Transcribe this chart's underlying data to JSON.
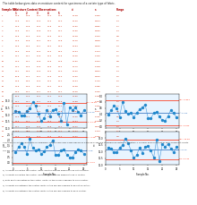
{
  "title_text": "The table below gives data on moisture content for specimens of a certain type of fabric.",
  "table_headers": [
    "Sample No.",
    "1",
    "2",
    "3",
    "4",
    "5",
    "x̄",
    "s",
    "Range"
  ],
  "table_data": [
    [
      1,
      11.9,
      12.8,
      12.4,
      12.4,
      11.9,
      12.28,
      0.39,
      0.9
    ],
    [
      2,
      11.5,
      12.4,
      12.9,
      12.2,
      12.0,
      12.2,
      0.524,
      1.4
    ],
    [
      3,
      11.0,
      11.8,
      12.6,
      11.5,
      12.7,
      11.92,
      0.682,
      1.7
    ],
    [
      4,
      11.5,
      11.7,
      12.8,
      11.4,
      12.4,
      11.96,
      0.596,
      1.4
    ],
    [
      5,
      12.5,
      12.0,
      11.9,
      12.3,
      12.7,
      12.28,
      0.316,
      0.8
    ],
    [
      6,
      11.6,
      12.8,
      12.4,
      13.7,
      11.8,
      12.46,
      0.808,
      2.1
    ],
    [
      7,
      12.9,
      13.3,
      12.1,
      13.4,
      13.0,
      12.94,
      0.506,
      1.3
    ],
    [
      8,
      12.3,
      12.8,
      12.6,
      12.2,
      13.3,
      12.64,
      0.413,
      1.1
    ],
    [
      9,
      12.1,
      12.7,
      11.8,
      12.2,
      11.5,
      12.06,
      0.445,
      1.2
    ],
    [
      10,
      11.0,
      11.7,
      11.8,
      11.6,
      11.5,
      11.52,
      0.312,
      0.8
    ],
    [
      11,
      11.4,
      11.3,
      11.5,
      12.3,
      12.1,
      11.72,
      0.448,
      1.0
    ],
    [
      12,
      12.1,
      13.3,
      11.9,
      12.2,
      12.0,
      12.3,
      0.554,
      1.4
    ],
    [
      13,
      10.8,
      12.4,
      12.4,
      11.9,
      12.0,
      11.9,
      0.626,
      1.6
    ],
    [
      14,
      12.5,
      13.3,
      11.3,
      12.2,
      12.4,
      12.34,
      0.716,
      2.0
    ],
    [
      15,
      11.9,
      12.6,
      12.6,
      12.4,
      12.4,
      12.38,
      0.285,
      0.7
    ],
    [
      16,
      12.0,
      12.1,
      11.7,
      12.1,
      12.4,
      12.06,
      0.26,
      0.7
    ],
    [
      17,
      10.9,
      11.6,
      12.0,
      11.4,
      11.9,
      11.56,
      0.445,
      1.1
    ],
    [
      18,
      12.7,
      13.7,
      12.7,
      12.5,
      12.8,
      12.88,
      0.464,
      1.2
    ],
    [
      19,
      11.2,
      11.0,
      11.6,
      11.0,
      11.7,
      11.3,
      0.332,
      0.7
    ],
    [
      20,
      12.4,
      12.9,
      12.4,
      12.4,
      12.6,
      12.54,
      0.207,
      0.5
    ],
    [
      21,
      12.3,
      12.7,
      12.3,
      12.3,
      12.2,
      12.36,
      0.196,
      0.5
    ],
    [
      22,
      12.3,
      12.7,
      12.1,
      13.0,
      12.6,
      12.54,
      0.335,
      0.9
    ],
    [
      23,
      11.7,
      12.6,
      11.5,
      12.6,
      12.7,
      12.22,
      0.54,
      1.2
    ],
    [
      24,
      11.5,
      11.8,
      12.6,
      11.6,
      12.2,
      11.94,
      0.443,
      1.1
    ],
    [
      25,
      12.3,
      11.8,
      12.6,
      12.5,
      12.4,
      12.32,
      0.296,
      0.8
    ]
  ],
  "question_text1": "Construct a control chart with an individual control line and OOBS based on each 95% sample standard deviation in addition 4 Classify each element in four Shewhart charts.",
  "question_text2": "UCL =",
  "question_text3": "LCL =",
  "xbar_mean": 12.16,
  "xbar_UCL": 12.88,
  "xbar_LCL": 11.44,
  "s_mean": 0.452,
  "s_UCL": 0.864,
  "s_LCL": 0.04,
  "R_mean": 1.08,
  "R_UCL": 2.28,
  "R_LCL": 0.0,
  "chart1_ylabel": "x̄",
  "chart2_ylabel": "s",
  "chart3_ylabel": "R",
  "chart4_ylabel": "x̄",
  "chart1_ylim": [
    11.0,
    13.5
  ],
  "chart2_ylim": [
    -0.05,
    1.05
  ],
  "chart3_ylim": [
    -0.2,
    2.8
  ],
  "chart4_ylim": [
    11.0,
    13.5
  ],
  "chart1_yticks": [
    11.0,
    11.5,
    12.0,
    12.5,
    13.0
  ],
  "chart2_yticks": [
    0.0,
    0.2,
    0.4,
    0.6,
    0.8,
    1.0
  ],
  "chart3_yticks": [
    0.0,
    0.5,
    1.0,
    1.5,
    2.0,
    2.5
  ],
  "chart4_yticks": [
    11.0,
    11.5,
    12.0,
    12.5,
    13.0
  ],
  "background_color": "#ffffff",
  "table_header_color": "#aa0000",
  "table_data_color": "#cc2200",
  "chart_bg_color": "#e8f4ff",
  "chart_point_color": "#2288cc",
  "chart_line_color": "#4499dd",
  "chart_ucl_color": "#ff2200",
  "chart_lcl_color": "#ff2200",
  "chart_center_color": "#2266bb",
  "answer_lines": [
    "a) All points are within the control limits, and the process appears to be out of control.",
    "b) All points are within the control limits, and the process appears to be in control.",
    "c) Both points are between the control limits, so the process appears to be in control.",
    "d) All points are between the control limits, so the process appears to be out of control.",
    "e) All points are between the control limits, so the process appears to be in control."
  ]
}
